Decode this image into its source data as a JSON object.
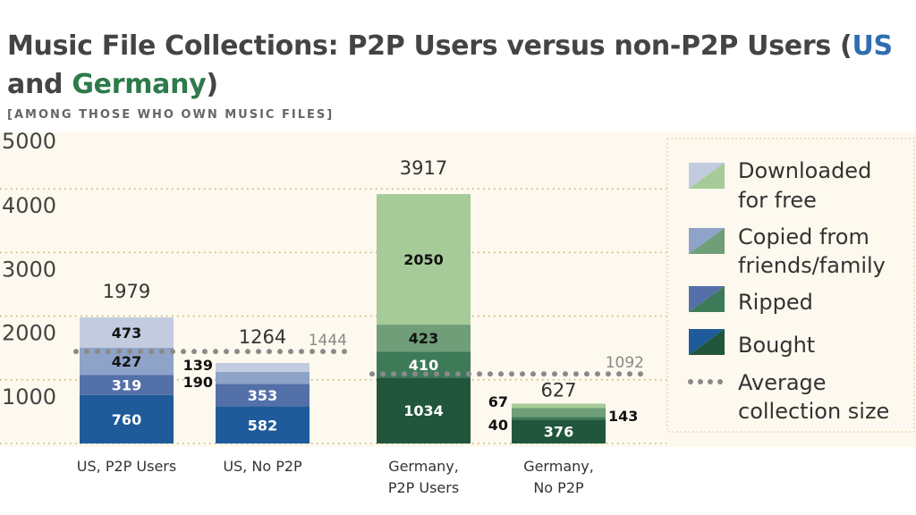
{
  "chart_data": {
    "type": "bar",
    "stacked": true,
    "title_parts": [
      "Music File Collections: P2P Users versus non-P2P Users (",
      "US",
      " and ",
      "Germany",
      ")"
    ],
    "subtitle": "[AMONG THOSE WHO OWN MUSIC FILES]",
    "ylim": [
      0,
      5000
    ],
    "yticks": [
      "5000",
      "4000",
      "3000",
      "2000",
      "1000"
    ],
    "ytick_values": [
      5000,
      4000,
      3000,
      2000,
      1000
    ],
    "grid": true,
    "categories": [
      {
        "label": [
          "US, P2P Users"
        ],
        "group": "US"
      },
      {
        "label": [
          "US, No P2P"
        ],
        "group": "US"
      },
      {
        "label": [
          "Germany,",
          "P2P Users"
        ],
        "group": "Germany"
      },
      {
        "label": [
          "Germany,",
          "No P2P"
        ],
        "group": "Germany"
      }
    ],
    "totals": [
      "1979",
      "1264",
      "3917",
      "627"
    ],
    "series": [
      {
        "name": "Bought",
        "values": [
          760,
          582,
          1034,
          376
        ]
      },
      {
        "name": "Ripped",
        "values": [
          319,
          353,
          410,
          40
        ]
      },
      {
        "name": "Copied from friends/family",
        "values": [
          427,
          190,
          423,
          143
        ]
      },
      {
        "name": "Downloaded for free",
        "values": [
          473,
          139,
          2050,
          67
        ]
      }
    ],
    "averages": [
      {
        "group": "US",
        "value": 1444,
        "label": "1444"
      },
      {
        "group": "Germany",
        "value": 1092,
        "label": "1092"
      }
    ],
    "legend": {
      "placement": "right",
      "entries": [
        {
          "lines": [
            "Downloaded",
            "for free"
          ]
        },
        {
          "lines": [
            "Copied from",
            "friends/family"
          ]
        },
        {
          "lines": [
            "Ripped"
          ]
        },
        {
          "lines": [
            "Bought"
          ]
        },
        {
          "lines": [
            "Average",
            "collection size"
          ]
        }
      ]
    },
    "colors": {
      "US": [
        "#1f5b9a",
        "#5470a8",
        "#8fa3c8",
        "#c3cbe0"
      ],
      "Germany": [
        "#22563c",
        "#3d7a58",
        "#6f9e78",
        "#a6cb98"
      ],
      "background": "#fdf9ee",
      "average": "#8a8a8a"
    }
  }
}
